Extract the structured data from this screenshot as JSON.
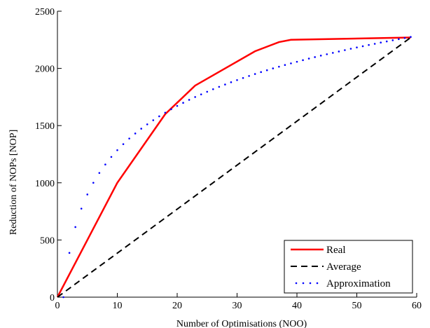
{
  "chart_data": {
    "type": "line",
    "title": "",
    "xlabel": "Number of Optimisations (NOO)",
    "ylabel": "Reduction of NOPs [NOP]",
    "xlim": [
      0,
      60
    ],
    "ylim": [
      0,
      2500
    ],
    "xticks": [
      0,
      10,
      20,
      30,
      40,
      50,
      60
    ],
    "yticks": [
      0,
      500,
      1000,
      1500,
      2000,
      2500
    ],
    "grid": false,
    "legend_position": "bottom-right",
    "series": [
      {
        "name": "Real",
        "style": "solid",
        "color": "#ff0000",
        "x": [
          0,
          10,
          18,
          23,
          33,
          37,
          39,
          59
        ],
        "y": [
          0,
          1000,
          1600,
          1850,
          2150,
          2230,
          2250,
          2270
        ]
      },
      {
        "name": "Average",
        "style": "dashed",
        "color": "#000000",
        "x": [
          0,
          59
        ],
        "y": [
          0,
          2270
        ]
      },
      {
        "name": "Approximation",
        "style": "dotted",
        "color": "#0000ff",
        "formula": "y = 558 * ln(x)",
        "x": [
          1,
          2,
          3,
          4,
          5,
          6,
          7,
          8,
          9,
          10,
          11,
          12,
          13,
          14,
          15,
          16,
          17,
          18,
          19,
          20,
          21,
          22,
          23,
          24,
          25,
          26,
          27,
          28,
          29,
          30,
          31,
          32,
          33,
          34,
          35,
          36,
          37,
          38,
          39,
          40,
          41,
          42,
          43,
          44,
          45,
          46,
          47,
          48,
          49,
          50,
          51,
          52,
          53,
          54,
          55,
          56,
          57,
          58,
          59
        ],
        "y": [
          0,
          387,
          613,
          774,
          898,
          1000,
          1086,
          1160,
          1226,
          1285,
          1338,
          1387,
          1431,
          1473,
          1511,
          1547,
          1581,
          1613,
          1643,
          1672,
          1699,
          1725,
          1750,
          1773,
          1796,
          1818,
          1839,
          1859,
          1879,
          1898,
          1916,
          1934,
          1951,
          1968,
          1984,
          2000,
          2015,
          2030,
          2044,
          2058,
          2072,
          2086,
          2099,
          2112,
          2124,
          2136,
          2148,
          2160,
          2172,
          2183,
          2194,
          2205,
          2215,
          2226,
          2236,
          2246,
          2256,
          2266,
          2275
        ]
      }
    ]
  }
}
